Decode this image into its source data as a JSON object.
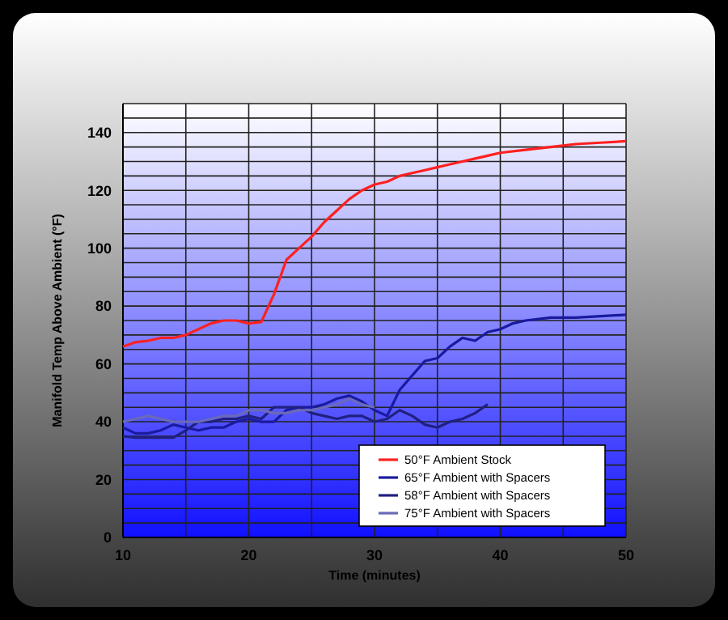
{
  "chart_data": {
    "type": "line",
    "xlabel": "Time (minutes)",
    "ylabel": "Manifold Temp Above Ambient (°F)",
    "xlim": [
      10,
      50
    ],
    "xticks": [
      10,
      {
        "value": 15,
        "label": null
      },
      20,
      {
        "value": 25,
        "label": null
      },
      30,
      {
        "value": 35,
        "label": null
      },
      40,
      {
        "value": 45,
        "label": null
      },
      50
    ],
    "ylim": [
      0,
      150
    ],
    "yticks": [
      0,
      {
        "value": 5,
        "label": null
      },
      {
        "value": 10,
        "label": null
      },
      {
        "value": 15,
        "label": null
      },
      20,
      {
        "value": 25,
        "label": null
      },
      {
        "value": 30,
        "label": null
      },
      {
        "value": 35,
        "label": null
      },
      40,
      {
        "value": 45,
        "label": null
      },
      {
        "value": 50,
        "label": null
      },
      {
        "value": 55,
        "label": null
      },
      60,
      {
        "value": 65,
        "label": null
      },
      {
        "value": 70,
        "label": null
      },
      {
        "value": 75,
        "label": null
      },
      80,
      {
        "value": 85,
        "label": null
      },
      {
        "value": 90,
        "label": null
      },
      {
        "value": 95,
        "label": null
      },
      100,
      {
        "value": 105,
        "label": null
      },
      {
        "value": 110,
        "label": null
      },
      {
        "value": 115,
        "label": null
      },
      120,
      {
        "value": 125,
        "label": null
      },
      {
        "value": 130,
        "label": null
      },
      {
        "value": 135,
        "label": null
      },
      140,
      {
        "value": 145,
        "label": null
      },
      {
        "value": 150,
        "label": null
      }
    ],
    "grid": true,
    "legend": "bottom right",
    "marker": "none",
    "line_style": "solid",
    "series": [
      {
        "name": "50°F Ambient Stock",
        "color": "#ff2020",
        "x": [
          10,
          11,
          12,
          13,
          14,
          15,
          16,
          17,
          18,
          19,
          20,
          21,
          22,
          23,
          24,
          25,
          26,
          27,
          28,
          29,
          30,
          31,
          32,
          33,
          34,
          35,
          36,
          37,
          38,
          39,
          40,
          42,
          44,
          46,
          48,
          50
        ],
        "values": [
          66,
          67.5,
          68,
          69,
          69,
          70,
          72,
          74,
          75,
          75,
          74,
          74.5,
          84,
          96,
          100,
          104,
          109,
          113,
          117,
          120,
          122,
          123,
          125,
          126,
          127,
          128,
          129,
          130,
          131,
          132,
          133,
          134,
          135,
          136,
          136.5,
          137
        ]
      },
      {
        "name": "65°F Ambient with Spacers",
        "color": "#1a1aa0",
        "x": [
          10,
          11,
          12,
          13,
          14,
          15,
          16,
          17,
          18,
          19,
          20,
          21,
          22,
          23,
          24,
          25,
          26,
          27,
          28,
          29,
          30,
          31,
          32,
          33,
          34,
          35,
          36,
          37,
          38,
          39,
          40,
          41,
          42,
          44,
          46,
          48,
          50
        ],
        "values": [
          38,
          36,
          36,
          37,
          39,
          38,
          37,
          38,
          38,
          40,
          41,
          40,
          40,
          44,
          45,
          45,
          46,
          48,
          49,
          47,
          44,
          42,
          51,
          56,
          61,
          62,
          66,
          69,
          68,
          71,
          72,
          74,
          75,
          76,
          76,
          76.5,
          77
        ]
      },
      {
        "name": "58°F Ambient with Spacers",
        "color": "#202080",
        "x": [
          10,
          11,
          12,
          13,
          14,
          15,
          16,
          17,
          18,
          19,
          20,
          21,
          22,
          23,
          24,
          25,
          26,
          27,
          28,
          29,
          30,
          31,
          32,
          33,
          34,
          35,
          36,
          37,
          38,
          39
        ],
        "values": [
          35,
          34.5,
          34.5,
          34.5,
          34.5,
          37,
          40,
          40,
          41,
          41,
          42,
          41,
          45,
          45,
          45,
          43,
          42,
          41,
          42,
          42,
          40,
          41,
          44,
          42,
          39,
          38,
          40,
          41,
          43,
          46
        ]
      },
      {
        "name": "75°F Ambient with Spacers",
        "color": "#6a6ab8",
        "x": [
          10,
          11,
          12,
          13,
          14,
          15,
          16,
          17,
          18,
          19,
          20,
          21,
          22,
          23,
          24,
          25,
          26,
          27,
          28,
          29,
          30
        ],
        "values": [
          40,
          41,
          42,
          41,
          40,
          40,
          40,
          41,
          42,
          42,
          44,
          44,
          43,
          43,
          44,
          44,
          45,
          46,
          48,
          46,
          45
        ]
      }
    ]
  }
}
